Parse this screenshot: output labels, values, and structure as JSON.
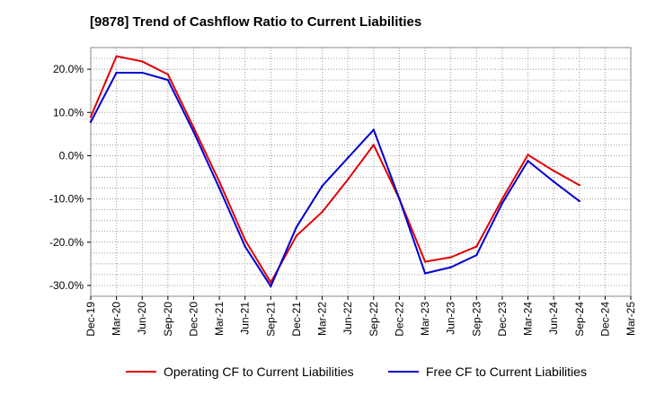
{
  "chart_data": {
    "type": "line",
    "title": "[9878]  Trend of Cashflow Ratio to Current Liabilities",
    "xlabel": "",
    "ylabel": "",
    "categories": [
      "Dec-19",
      "Mar-20",
      "Jun-20",
      "Sep-20",
      "Dec-20",
      "Mar-21",
      "Jun-21",
      "Sep-21",
      "Dec-21",
      "Mar-22",
      "Jun-22",
      "Sep-22",
      "Dec-22",
      "Mar-23",
      "Jun-23",
      "Sep-23",
      "Dec-23",
      "Mar-24",
      "Jun-24",
      "Sep-24",
      "Dec-24",
      "Mar-25"
    ],
    "ylim": [
      -32.5,
      25.0
    ],
    "yticks": [
      20,
      10,
      0,
      -10,
      -20,
      -30
    ],
    "ytick_labels": [
      "20.0%",
      "10.0%",
      "0.0%",
      "-10.0%",
      "-20.0%",
      "-30.0%"
    ],
    "grid": true,
    "legend_placement": "bottom",
    "series": [
      {
        "name": "Operating CF to Current Liabilities",
        "color": "#e00000",
        "values": [
          9.0,
          23.0,
          21.8,
          18.8,
          6.5,
          -6.0,
          -19.5,
          -29.3,
          -18.5,
          -13.0,
          -5.5,
          2.5,
          -10.0,
          -24.5,
          -23.5,
          -21.0,
          -10.0,
          0.2,
          -3.5,
          -6.8,
          null,
          null
        ]
      },
      {
        "name": "Free CF to Current Liabilities",
        "color": "#0000d0",
        "values": [
          7.8,
          19.2,
          19.2,
          17.5,
          5.5,
          -7.5,
          -21.0,
          -30.2,
          -16.5,
          -7.0,
          -0.5,
          6.0,
          -10.0,
          -27.2,
          -25.8,
          -23.0,
          -11.0,
          -1.2,
          -6.0,
          -10.5,
          null,
          null
        ]
      }
    ]
  }
}
